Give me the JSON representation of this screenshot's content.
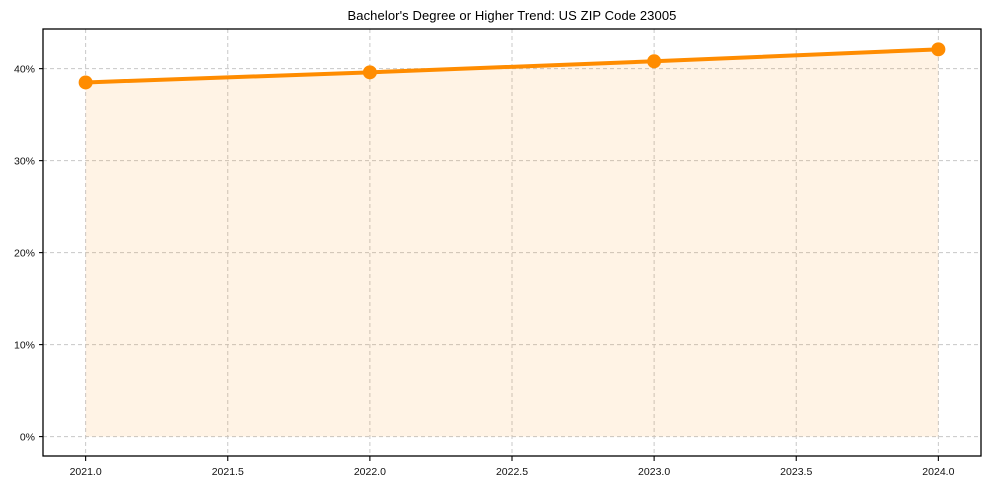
{
  "page": {
    "background_color": "#ffffff"
  },
  "chart_data": {
    "type": "line",
    "title": "Bachelor's Degree or Higher Trend: US ZIP Code 23005",
    "xlabel": "",
    "ylabel": "",
    "x": [
      2021,
      2022,
      2023,
      2024
    ],
    "series": [
      {
        "name": "Bachelor's Degree or Higher (%)",
        "values": [
          38.5,
          39.6,
          40.8,
          42.1
        ]
      }
    ],
    "x_ticks": [
      2021.0,
      2021.5,
      2022.0,
      2022.5,
      2023.0,
      2023.5,
      2024.0
    ],
    "x_tick_labels": [
      "2021.0",
      "2021.5",
      "2022.0",
      "2022.5",
      "2023.0",
      "2023.5",
      "2024.0"
    ],
    "y_ticks": [
      0,
      10,
      20,
      30,
      40
    ],
    "y_tick_labels": [
      "0%",
      "10%",
      "20%",
      "30%",
      "40%"
    ],
    "xlim": [
      2020.85,
      2024.15
    ],
    "ylim": [
      -2.11,
      44.31
    ],
    "grid": "dashed",
    "legend": "none",
    "area_fill_baseline": 0,
    "line_color": "#ff8c00",
    "fill_color": "rgba(255,140,0,0.10)",
    "grid_color": "#c8c8c8",
    "marker": "circle",
    "marker_radius": 7,
    "line_width": 4
  }
}
